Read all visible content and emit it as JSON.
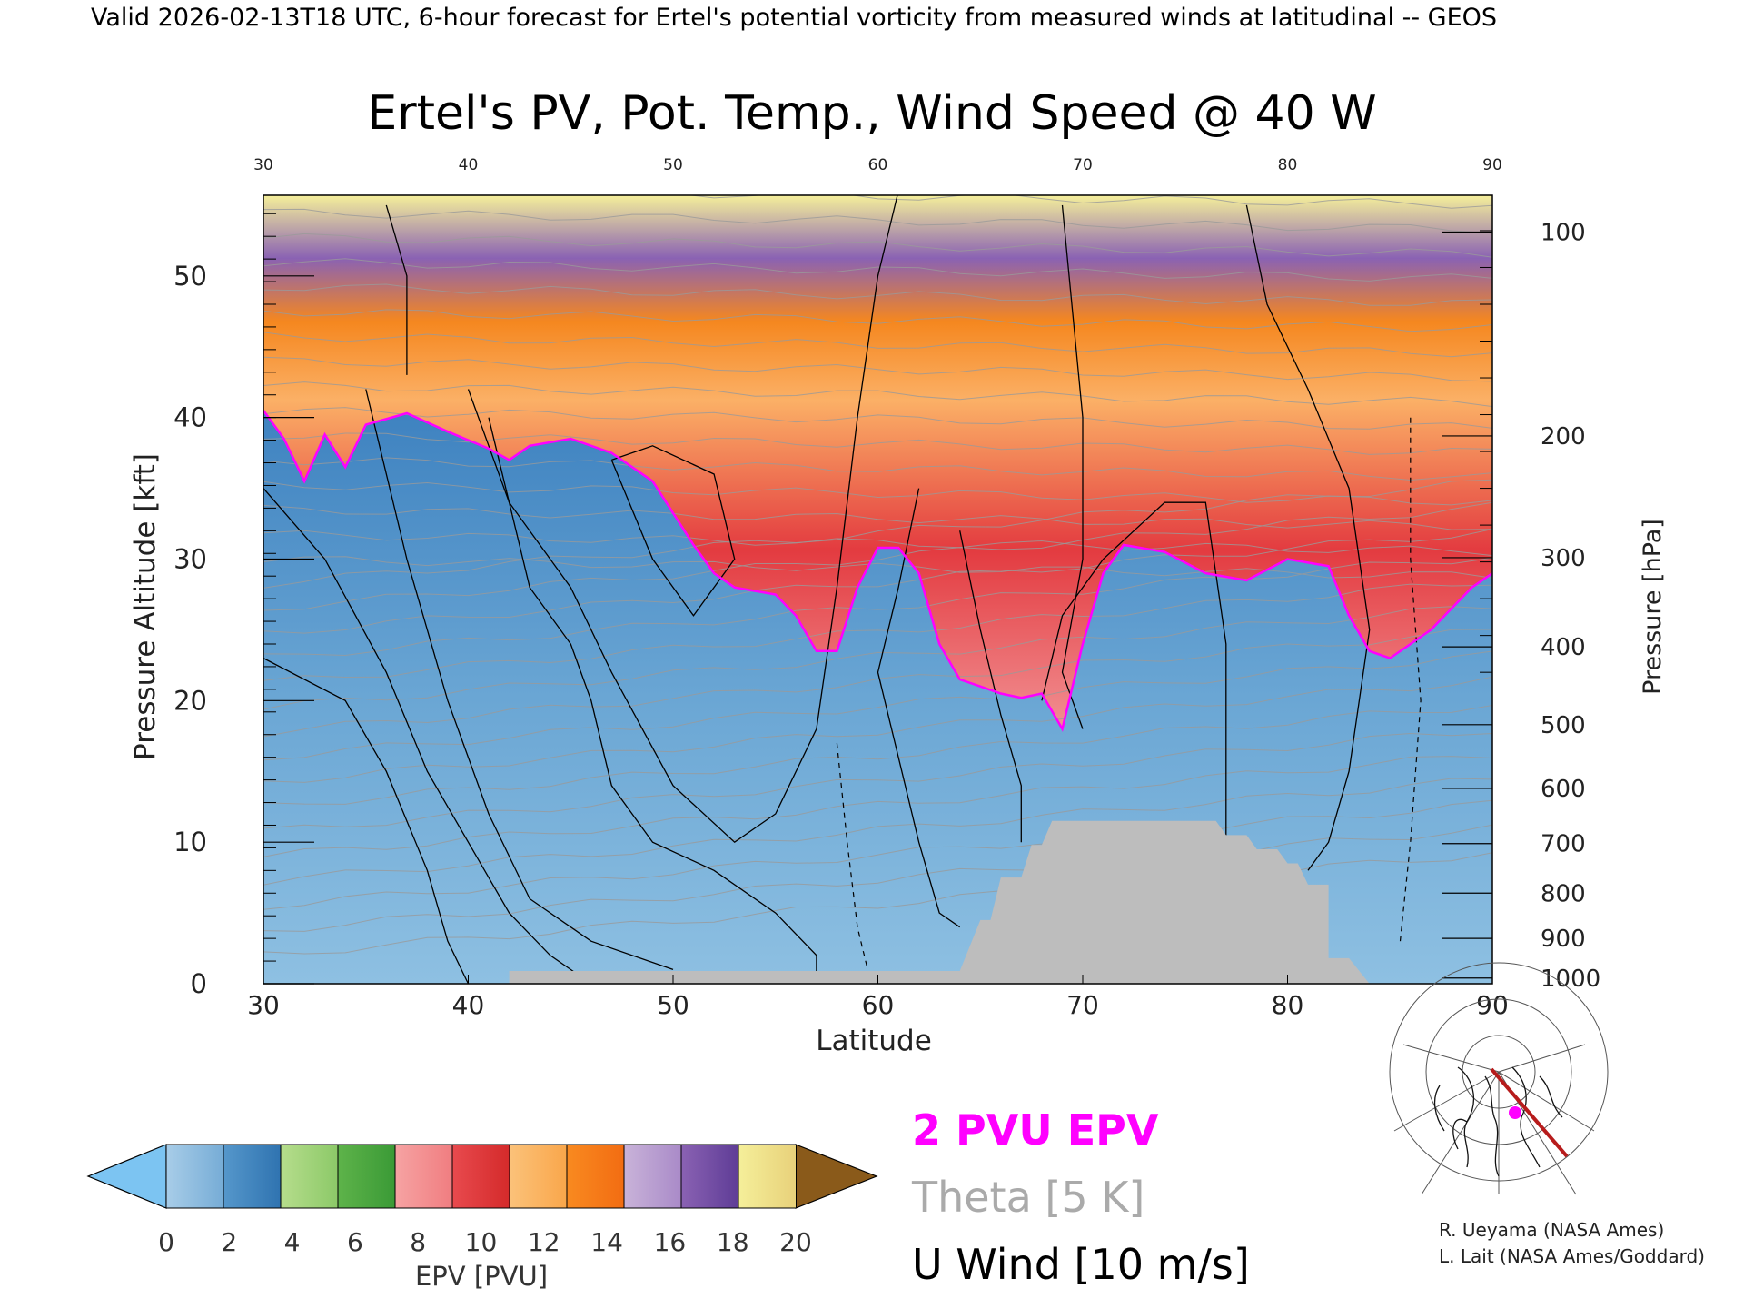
{
  "header": {
    "valid_line": "Valid 2026-02-13T18 UTC, 6-hour forecast for Ertel's potential vorticity from measured winds at latitudinal -- GEOS"
  },
  "chart_data": {
    "type": "heatmap",
    "title": "Ertel's PV, Pot. Temp., Wind Speed @ 40 W",
    "xlabel": "Latitude",
    "ylabel": "Pressure Altitude [kft]",
    "y2label": "Pressure [hPa]",
    "xlim": [
      30,
      90
    ],
    "ylim": [
      0,
      55.7
    ],
    "x_ticks": [
      30,
      40,
      50,
      60,
      70,
      80,
      90
    ],
    "x_tick_labels": [
      "30",
      "40",
      "50",
      "60",
      "70",
      "80",
      "90"
    ],
    "top_tick_labels": [
      "30",
      "40",
      "50",
      "60",
      "70",
      "80",
      "90"
    ],
    "y_ticks": [
      0,
      10,
      20,
      30,
      40,
      50
    ],
    "y_tick_labels": [
      "0",
      "10",
      "20",
      "30",
      "40",
      "50"
    ],
    "pressure_ticks": [
      {
        "label": "100",
        "kft": 53.1
      },
      {
        "label": "200",
        "kft": 38.7
      },
      {
        "label": "300",
        "kft": 30.1
      },
      {
        "label": "400",
        "kft": 23.8
      },
      {
        "label": "500",
        "kft": 18.3
      },
      {
        "label": "600",
        "kft": 13.8
      },
      {
        "label": "700",
        "kft": 9.9
      },
      {
        "label": "800",
        "kft": 6.4
      },
      {
        "label": "900",
        "kft": 3.2
      },
      {
        "label": "1000",
        "kft": 0.4
      }
    ],
    "tropopause_2pvu": [
      [
        30,
        40.5
      ],
      [
        31,
        38.5
      ],
      [
        32,
        35.5
      ],
      [
        33,
        38.8
      ],
      [
        34,
        36.5
      ],
      [
        35,
        39.5
      ],
      [
        37,
        40.3
      ],
      [
        39,
        39.0
      ],
      [
        41,
        37.8
      ],
      [
        42,
        37.0
      ],
      [
        43,
        38.0
      ],
      [
        45,
        38.5
      ],
      [
        47,
        37.5
      ],
      [
        49,
        35.5
      ],
      [
        51,
        31.0
      ],
      [
        52,
        29.0
      ],
      [
        53,
        28.0
      ],
      [
        55,
        27.5
      ],
      [
        56,
        26.0
      ],
      [
        57,
        23.5
      ],
      [
        58,
        23.5
      ],
      [
        59,
        28.0
      ],
      [
        60,
        30.8
      ],
      [
        61,
        30.8
      ],
      [
        62,
        29.0
      ],
      [
        63,
        24.0
      ],
      [
        64,
        21.5
      ],
      [
        65,
        21.0
      ],
      [
        66,
        20.5
      ],
      [
        67,
        20.2
      ],
      [
        68,
        20.5
      ],
      [
        69,
        18.0
      ],
      [
        70,
        24.0
      ],
      [
        71,
        29.0
      ],
      [
        72,
        31.0
      ],
      [
        74,
        30.5
      ],
      [
        76,
        29.0
      ],
      [
        78,
        28.5
      ],
      [
        80,
        30.0
      ],
      [
        82,
        29.5
      ],
      [
        83,
        26.0
      ],
      [
        84,
        23.5
      ],
      [
        85,
        23.0
      ],
      [
        87,
        25.0
      ],
      [
        89,
        28.0
      ],
      [
        90,
        29.0
      ]
    ],
    "surface_mask": [
      [
        42,
        0.9
      ],
      [
        47,
        0.9
      ],
      [
        53,
        0.9
      ],
      [
        56,
        0.9
      ],
      [
        63,
        0.9
      ],
      [
        64,
        0.9
      ],
      [
        65,
        4.5
      ],
      [
        65.5,
        4.5
      ],
      [
        66,
        7.5
      ],
      [
        67,
        7.5
      ],
      [
        67.5,
        9.8
      ],
      [
        68,
        9.8
      ],
      [
        68.5,
        11.5
      ],
      [
        76.5,
        11.5
      ],
      [
        77,
        10.5
      ],
      [
        78,
        10.5
      ],
      [
        78.5,
        9.5
      ],
      [
        79.5,
        9.5
      ],
      [
        80,
        8.5
      ],
      [
        80.5,
        8.5
      ],
      [
        81,
        7.0
      ],
      [
        82,
        7.0
      ],
      [
        82,
        1.8
      ],
      [
        83,
        1.8
      ],
      [
        84,
        0
      ]
    ],
    "colorbar": {
      "label": "EPV [PVU]",
      "tick_labels": [
        "0",
        "2",
        "4",
        "6",
        "8",
        "10",
        "12",
        "14",
        "16",
        "18",
        "20"
      ],
      "under_color": "#7cc4f2",
      "over_color": "#8a5a1a",
      "bands": [
        [
          "#a8cde8",
          "#76acd6"
        ],
        [
          "#5597cb",
          "#2f73b0"
        ],
        [
          "#b6dd8c",
          "#8cc968"
        ],
        [
          "#5eb34a",
          "#3a9a36"
        ],
        [
          "#f6a3a3",
          "#f07d80"
        ],
        [
          "#e84a4e",
          "#d42a2a"
        ],
        [
          "#fbc27a",
          "#f9a64a"
        ],
        [
          "#f98a20",
          "#f26c12"
        ],
        [
          "#c9b3d9",
          "#a98ac8"
        ],
        [
          "#8a62b3",
          "#5e3c96"
        ],
        [
          "#f5ef9a",
          "#e8d17a"
        ]
      ]
    },
    "legend_entries": [
      {
        "label": "2 PVU EPV",
        "color": "#ff00ff"
      },
      {
        "label": "Theta [5 K]",
        "color": "#aaaaaa"
      },
      {
        "label": "U Wind [10 m/s]",
        "color": "#000000"
      }
    ],
    "series": [
      {
        "field": "EPV",
        "levels": [
          2,
          4,
          6,
          8,
          10,
          12,
          14,
          16,
          18
        ]
      },
      {
        "field": "Theta",
        "interval": 5
      },
      {
        "field": "U",
        "interval": 10
      }
    ]
  },
  "credits": {
    "line1": "R. Ueyama (NASA Ames)",
    "line2": "L. Lait (NASA Ames/Goddard)"
  },
  "colors": {
    "tropopause": "#ff00ff",
    "surface": "#bdbdbd",
    "inset_track": "#b71c1c",
    "inset_marker": "#ff00ff"
  }
}
